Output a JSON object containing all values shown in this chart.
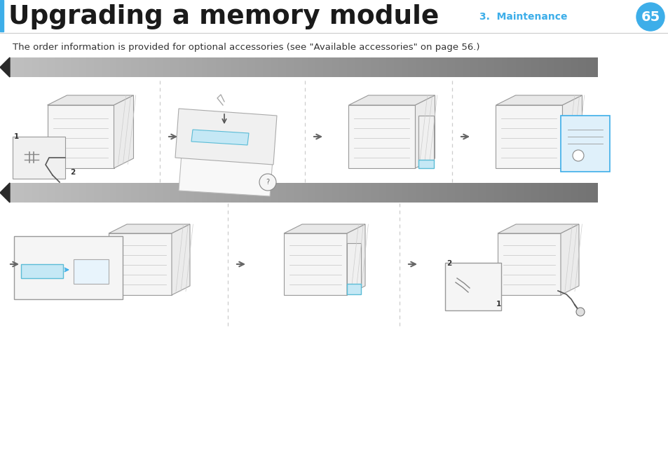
{
  "title": "Upgrading a memory module",
  "subtitle_section": "3.  Maintenance",
  "page_number": "65",
  "body_text": "The order information is provided for optional accessories (see \"Available accessories\" on page 56.)",
  "title_color": "#1a1a1a",
  "title_left_bar_color": "#3daee9",
  "section_text_color": "#3daee9",
  "page_circle_color": "#3daee9",
  "page_number_color": "#ffffff",
  "background_color": "#ffffff",
  "separator_color": "#cccccc",
  "banner_dark": 0.22,
  "banner_mid": 0.55,
  "banner_light": 0.65,
  "divider_color": "#cccccc",
  "arrow_color": "#666666",
  "printer_edge": "#999999",
  "printer_face": "#f5f5f5",
  "printer_top": "#ebebeb",
  "blue_accent": "#5bbcd6",
  "blue_light": "#c5e8f5",
  "inset_bg": "#f0f0f0",
  "shadow_color": "#dddddd"
}
